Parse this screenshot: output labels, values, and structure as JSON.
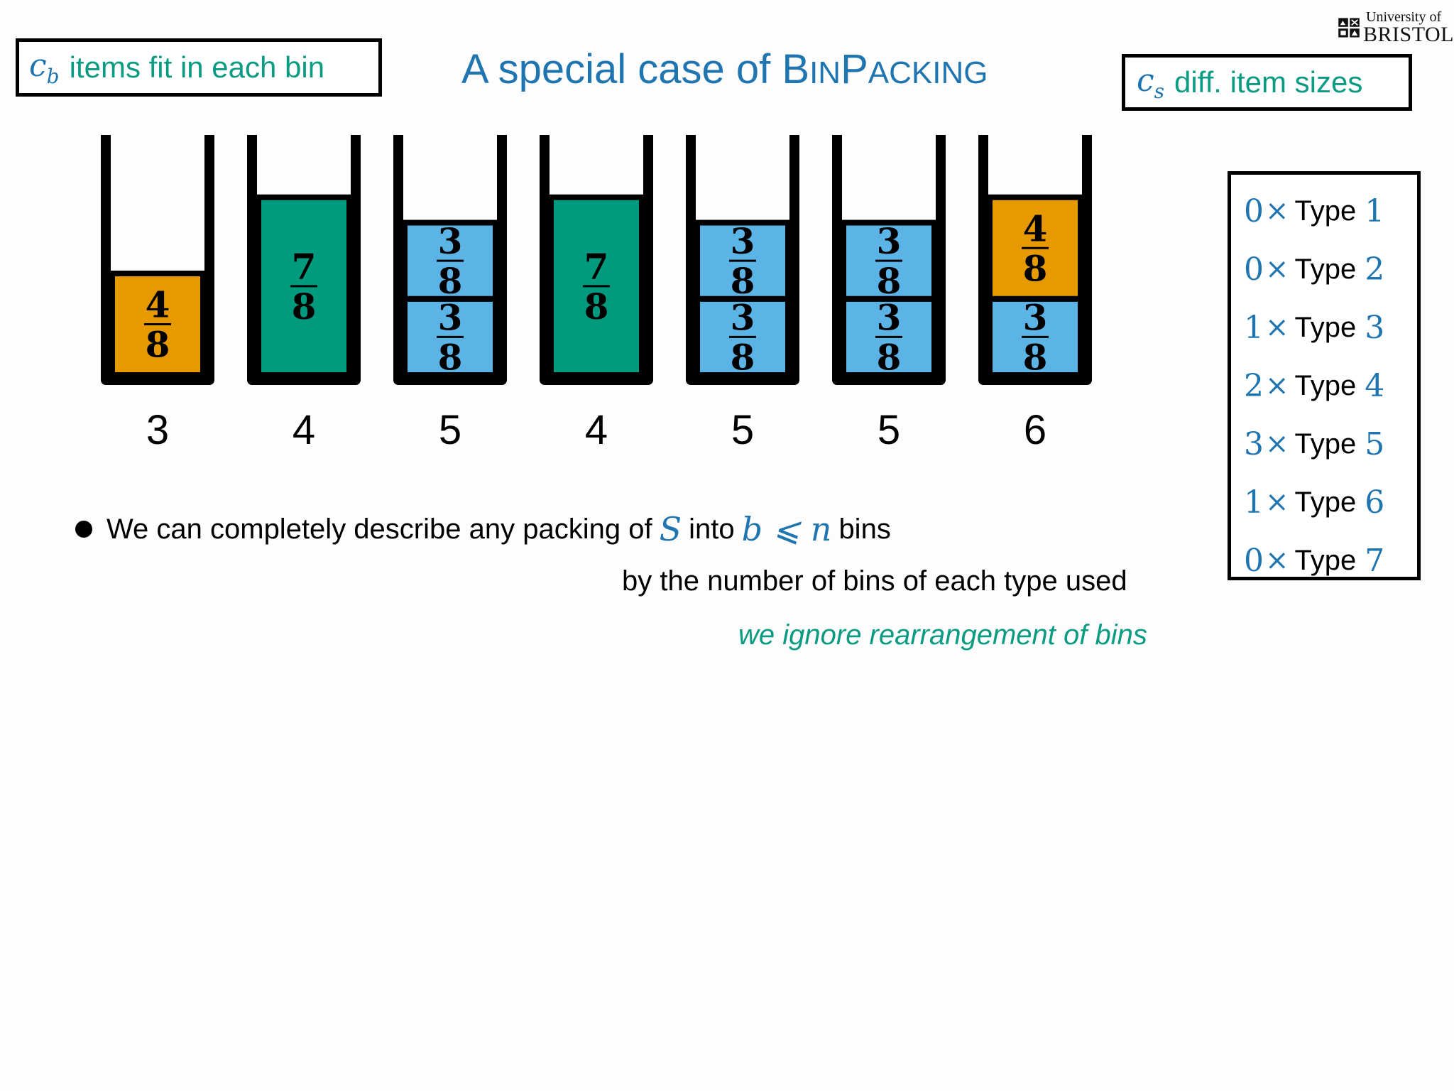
{
  "header": {
    "title_prefix": "A special case of ",
    "title_b": "B",
    "title_in": "IN",
    "title_p": "P",
    "title_acking": "ACKING",
    "cb_symbol": "c",
    "cb_sub": "b",
    "cb_text": "items fit in each bin",
    "cs_symbol": "c",
    "cs_sub": "s",
    "cs_text": "diff. item sizes"
  },
  "logo": {
    "line1": "University of",
    "line2": "BRISTOL"
  },
  "colors": {
    "orange": "#e69a00",
    "green": "#009a7e",
    "blue": "#5cb4e6",
    "accent_blue": "#1f75b0",
    "accent_green": "#0a9b82"
  },
  "bins": [
    {
      "type_label": "3",
      "items": [
        {
          "num": "4",
          "den": "8",
          "size": 0.5,
          "color": "orange"
        }
      ]
    },
    {
      "type_label": "4",
      "items": [
        {
          "num": "7",
          "den": "8",
          "size": 0.875,
          "color": "green"
        }
      ]
    },
    {
      "type_label": "5",
      "items": [
        {
          "num": "3",
          "den": "8",
          "size": 0.375,
          "color": "blue"
        },
        {
          "num": "3",
          "den": "8",
          "size": 0.375,
          "color": "blue"
        }
      ]
    },
    {
      "type_label": "4",
      "items": [
        {
          "num": "7",
          "den": "8",
          "size": 0.875,
          "color": "green"
        }
      ]
    },
    {
      "type_label": "5",
      "items": [
        {
          "num": "3",
          "den": "8",
          "size": 0.375,
          "color": "blue"
        },
        {
          "num": "3",
          "den": "8",
          "size": 0.375,
          "color": "blue"
        }
      ]
    },
    {
      "type_label": "5",
      "items": [
        {
          "num": "3",
          "den": "8",
          "size": 0.375,
          "color": "blue"
        },
        {
          "num": "3",
          "den": "8",
          "size": 0.375,
          "color": "blue"
        }
      ]
    },
    {
      "type_label": "6",
      "items": [
        {
          "num": "3",
          "den": "8",
          "size": 0.375,
          "color": "blue"
        },
        {
          "num": "4",
          "den": "8",
          "size": 0.5,
          "color": "orange"
        }
      ]
    }
  ],
  "type_counts": [
    {
      "count": "0",
      "word": "Type",
      "index": "1"
    },
    {
      "count": "0",
      "word": "Type",
      "index": "2"
    },
    {
      "count": "1",
      "word": "Type",
      "index": "3"
    },
    {
      "count": "2",
      "word": "Type",
      "index": "4"
    },
    {
      "count": "3",
      "word": "Type",
      "index": "5"
    },
    {
      "count": "1",
      "word": "Type",
      "index": "6"
    },
    {
      "count": "0",
      "word": "Type",
      "index": "7"
    }
  ],
  "times_symbol": "×",
  "bullet": {
    "part1": "We can completely describe any packing of",
    "S": "S",
    "part2": "into",
    "b_leq_n": "b ⩽ n",
    "part3": "bins",
    "line2": "by the number of bins of each type used",
    "line3": "we ignore rearrangement of bins"
  }
}
